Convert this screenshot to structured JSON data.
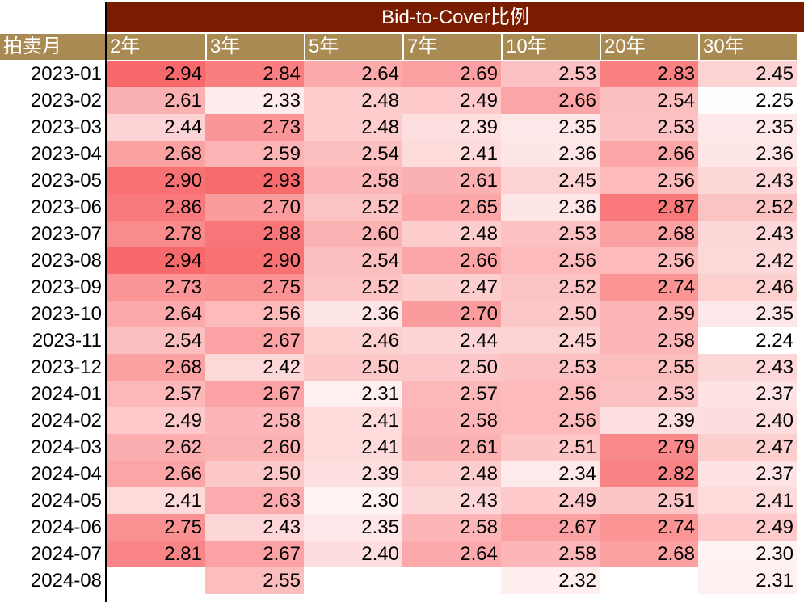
{
  "table": {
    "title": "Bid-to-Cover比例",
    "row_header_label": "拍卖月",
    "columns": [
      "2年",
      "3年",
      "5年",
      "7年",
      "10年",
      "20年",
      "30年"
    ],
    "rows": [
      {
        "month": "2023-01",
        "values": [
          "2.94",
          "2.84",
          "2.64",
          "2.69",
          "2.53",
          "2.83",
          "2.45"
        ]
      },
      {
        "month": "2023-02",
        "values": [
          "2.61",
          "2.33",
          "2.48",
          "2.49",
          "2.66",
          "2.54",
          "2.25"
        ]
      },
      {
        "month": "2023-03",
        "values": [
          "2.44",
          "2.73",
          "2.48",
          "2.39",
          "2.35",
          "2.53",
          "2.35"
        ]
      },
      {
        "month": "2023-04",
        "values": [
          "2.68",
          "2.59",
          "2.54",
          "2.41",
          "2.36",
          "2.66",
          "2.36"
        ]
      },
      {
        "month": "2023-05",
        "values": [
          "2.90",
          "2.93",
          "2.58",
          "2.61",
          "2.45",
          "2.56",
          "2.43"
        ]
      },
      {
        "month": "2023-06",
        "values": [
          "2.86",
          "2.70",
          "2.52",
          "2.65",
          "2.36",
          "2.87",
          "2.52"
        ]
      },
      {
        "month": "2023-07",
        "values": [
          "2.78",
          "2.88",
          "2.60",
          "2.48",
          "2.53",
          "2.68",
          "2.43"
        ]
      },
      {
        "month": "2023-08",
        "values": [
          "2.94",
          "2.90",
          "2.54",
          "2.66",
          "2.56",
          "2.56",
          "2.42"
        ]
      },
      {
        "month": "2023-09",
        "values": [
          "2.73",
          "2.75",
          "2.52",
          "2.47",
          "2.52",
          "2.74",
          "2.46"
        ]
      },
      {
        "month": "2023-10",
        "values": [
          "2.64",
          "2.56",
          "2.36",
          "2.70",
          "2.50",
          "2.59",
          "2.35"
        ]
      },
      {
        "month": "2023-11",
        "values": [
          "2.54",
          "2.67",
          "2.46",
          "2.44",
          "2.45",
          "2.58",
          "2.24"
        ]
      },
      {
        "month": "2023-12",
        "values": [
          "2.68",
          "2.42",
          "2.50",
          "2.50",
          "2.53",
          "2.55",
          "2.43"
        ]
      },
      {
        "month": "2024-01",
        "values": [
          "2.57",
          "2.67",
          "2.31",
          "2.57",
          "2.56",
          "2.53",
          "2.37"
        ]
      },
      {
        "month": "2024-02",
        "values": [
          "2.49",
          "2.58",
          "2.41",
          "2.58",
          "2.56",
          "2.39",
          "2.40"
        ]
      },
      {
        "month": "2024-03",
        "values": [
          "2.62",
          "2.60",
          "2.41",
          "2.61",
          "2.51",
          "2.79",
          "2.47"
        ]
      },
      {
        "month": "2024-04",
        "values": [
          "2.66",
          "2.50",
          "2.39",
          "2.48",
          "2.34",
          "2.82",
          "2.37"
        ]
      },
      {
        "month": "2024-05",
        "values": [
          "2.41",
          "2.63",
          "2.30",
          "2.43",
          "2.49",
          "2.51",
          "2.41"
        ]
      },
      {
        "month": "2024-06",
        "values": [
          "2.75",
          "2.43",
          "2.35",
          "2.58",
          "2.67",
          "2.74",
          "2.49"
        ]
      },
      {
        "month": "2024-07",
        "values": [
          "2.81",
          "2.67",
          "2.40",
          "2.64",
          "2.58",
          "2.68",
          "2.30"
        ]
      },
      {
        "month": "2024-08",
        "values": [
          "",
          "2.55",
          "",
          "",
          "2.32",
          "",
          "2.31"
        ]
      }
    ]
  },
  "chart_data": {
    "type": "heatmap",
    "title": "Bid-to-Cover比例",
    "x": [
      "2年",
      "3年",
      "5年",
      "7年",
      "10年",
      "20年",
      "30年"
    ],
    "y": [
      "2023-01",
      "2023-02",
      "2023-03",
      "2023-04",
      "2023-05",
      "2023-06",
      "2023-07",
      "2023-08",
      "2023-09",
      "2023-10",
      "2023-11",
      "2023-12",
      "2024-01",
      "2024-02",
      "2024-03",
      "2024-04",
      "2024-05",
      "2024-06",
      "2024-07",
      "2024-08"
    ],
    "values": [
      [
        2.94,
        2.84,
        2.64,
        2.69,
        2.53,
        2.83,
        2.45
      ],
      [
        2.61,
        2.33,
        2.48,
        2.49,
        2.66,
        2.54,
        2.25
      ],
      [
        2.44,
        2.73,
        2.48,
        2.39,
        2.35,
        2.53,
        2.35
      ],
      [
        2.68,
        2.59,
        2.54,
        2.41,
        2.36,
        2.66,
        2.36
      ],
      [
        2.9,
        2.93,
        2.58,
        2.61,
        2.45,
        2.56,
        2.43
      ],
      [
        2.86,
        2.7,
        2.52,
        2.65,
        2.36,
        2.87,
        2.52
      ],
      [
        2.78,
        2.88,
        2.6,
        2.48,
        2.53,
        2.68,
        2.43
      ],
      [
        2.94,
        2.9,
        2.54,
        2.66,
        2.56,
        2.56,
        2.42
      ],
      [
        2.73,
        2.75,
        2.52,
        2.47,
        2.52,
        2.74,
        2.46
      ],
      [
        2.64,
        2.56,
        2.36,
        2.7,
        2.5,
        2.59,
        2.35
      ],
      [
        2.54,
        2.67,
        2.46,
        2.44,
        2.45,
        2.58,
        2.24
      ],
      [
        2.68,
        2.42,
        2.5,
        2.5,
        2.53,
        2.55,
        2.43
      ],
      [
        2.57,
        2.67,
        2.31,
        2.57,
        2.56,
        2.53,
        2.37
      ],
      [
        2.49,
        2.58,
        2.41,
        2.58,
        2.56,
        2.39,
        2.4
      ],
      [
        2.62,
        2.6,
        2.41,
        2.61,
        2.51,
        2.79,
        2.47
      ],
      [
        2.66,
        2.5,
        2.39,
        2.48,
        2.34,
        2.82,
        2.37
      ],
      [
        2.41,
        2.63,
        2.3,
        2.43,
        2.49,
        2.51,
        2.41
      ],
      [
        2.75,
        2.43,
        2.35,
        2.58,
        2.67,
        2.74,
        2.49
      ],
      [
        2.81,
        2.67,
        2.4,
        2.64,
        2.58,
        2.68,
        2.3
      ],
      [
        null,
        2.55,
        null,
        null,
        2.32,
        null,
        2.31
      ]
    ],
    "color_scale": {
      "low": "#ffffff",
      "high": "#f8696b"
    }
  }
}
